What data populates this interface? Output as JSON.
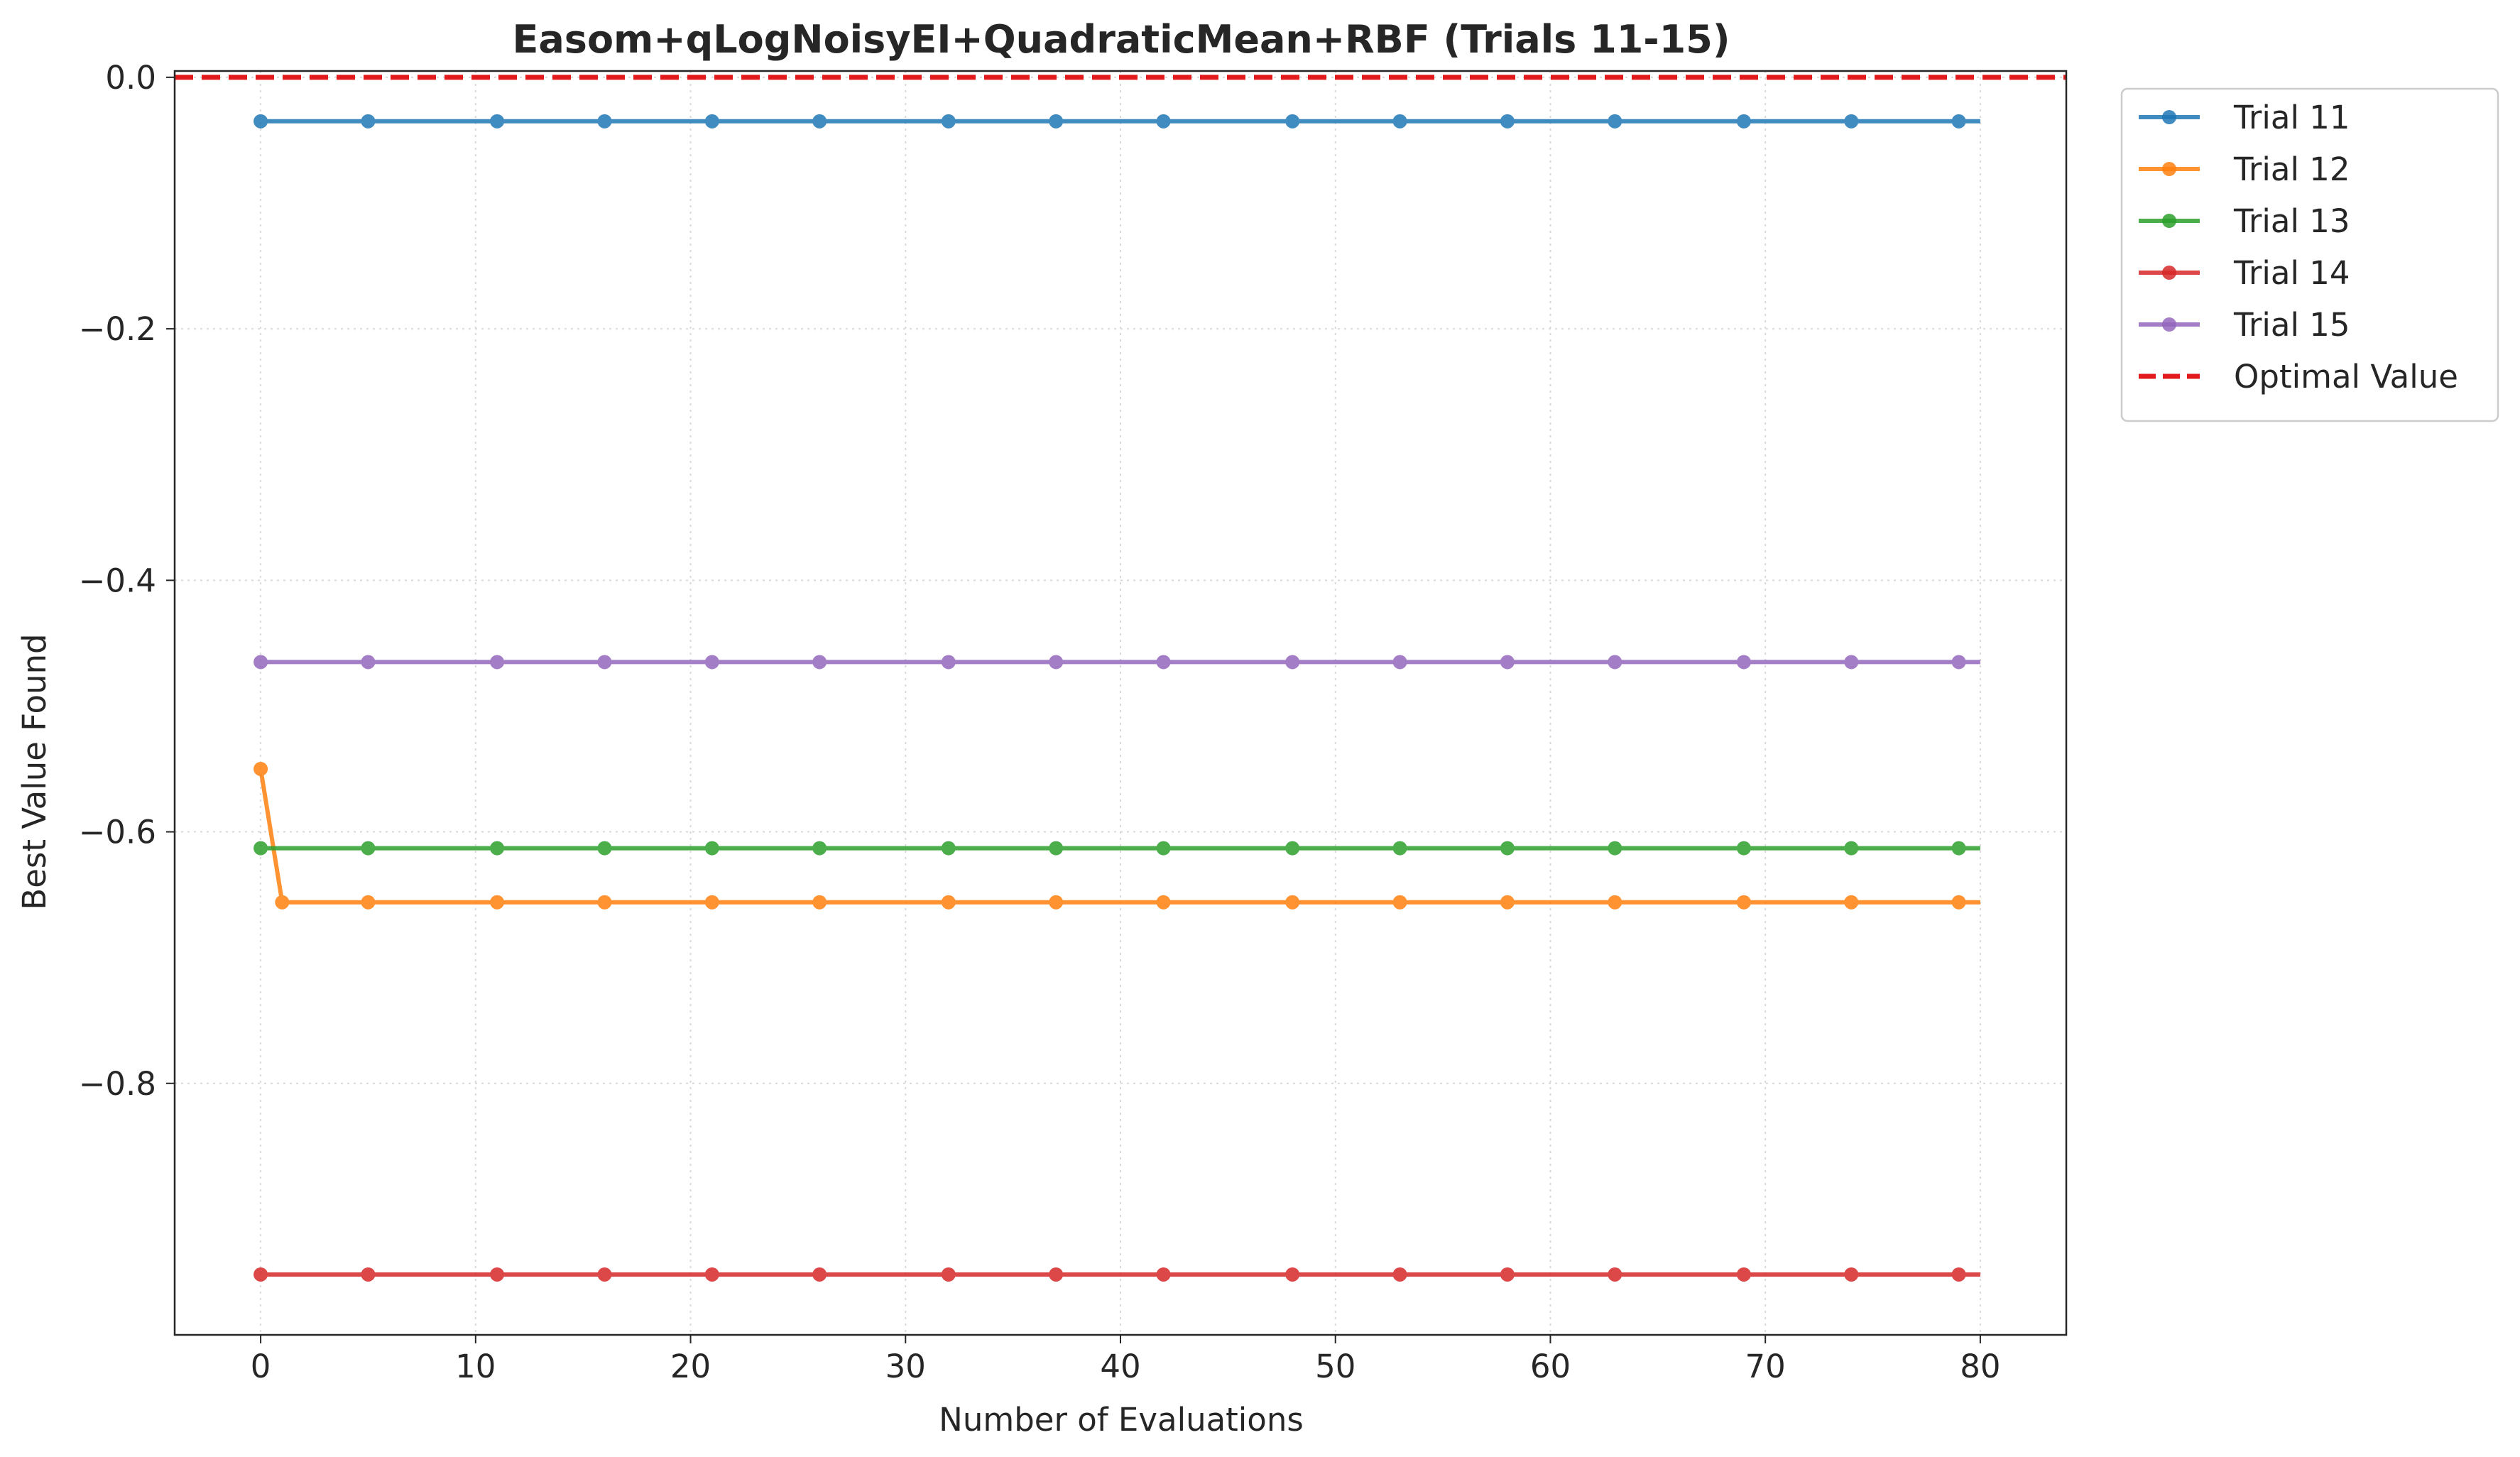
{
  "chart_data": {
    "type": "line",
    "title": "Easom+qLogNoisyEI+QuadraticMean+RBF (Trials 11-15)",
    "xlabel": "Number of Evaluations",
    "ylabel": "Best Value Found",
    "xlim": [
      -4,
      84
    ],
    "ylim": [
      -1.0,
      0.005
    ],
    "xticks": [
      0,
      10,
      20,
      30,
      40,
      50,
      60,
      70,
      80
    ],
    "xtick_labels": [
      "0",
      "10",
      "20",
      "30",
      "40",
      "50",
      "60",
      "70",
      "80"
    ],
    "yticks": [
      0.0,
      -0.2,
      -0.4,
      -0.6,
      -0.8
    ],
    "ytick_labels": [
      "0.0",
      "−0.2",
      "−0.4",
      "−0.6",
      "−0.8"
    ],
    "grid": true,
    "legend_position": "outside-upper-right",
    "series": [
      {
        "name": "Trial 11",
        "color": "#1f77b4",
        "x": [
          0,
          1,
          2,
          3,
          4,
          5,
          6,
          7,
          8,
          9,
          10,
          11,
          12,
          13,
          14,
          15,
          16,
          17,
          18,
          19,
          20,
          21,
          22,
          23,
          24,
          25,
          26,
          27,
          28,
          29,
          30,
          31,
          32,
          33,
          34,
          35,
          36,
          37,
          38,
          39,
          40,
          41,
          42,
          43,
          44,
          45,
          46,
          47,
          48,
          49,
          50,
          51,
          52,
          53,
          54,
          55,
          56,
          57,
          58,
          59,
          60,
          61,
          62,
          63,
          64,
          65,
          66,
          67,
          68,
          69,
          70,
          71,
          72,
          73,
          74,
          75,
          76,
          77,
          78,
          79,
          80
        ],
        "y": [
          -0.035,
          -0.035,
          -0.035,
          -0.035,
          -0.035,
          -0.035,
          -0.035,
          -0.035,
          -0.035,
          -0.035,
          -0.035,
          -0.035,
          -0.035,
          -0.035,
          -0.035,
          -0.035,
          -0.035,
          -0.035,
          -0.035,
          -0.035,
          -0.035,
          -0.035,
          -0.035,
          -0.035,
          -0.035,
          -0.035,
          -0.035,
          -0.035,
          -0.035,
          -0.035,
          -0.035,
          -0.035,
          -0.035,
          -0.035,
          -0.035,
          -0.035,
          -0.035,
          -0.035,
          -0.035,
          -0.035,
          -0.035,
          -0.035,
          -0.035,
          -0.035,
          -0.035,
          -0.035,
          -0.035,
          -0.035,
          -0.035,
          -0.035,
          -0.035,
          -0.035,
          -0.035,
          -0.035,
          -0.035,
          -0.035,
          -0.035,
          -0.035,
          -0.035,
          -0.035,
          -0.035,
          -0.035,
          -0.035,
          -0.035,
          -0.035,
          -0.035,
          -0.035,
          -0.035,
          -0.035,
          -0.035,
          -0.035,
          -0.035,
          -0.035,
          -0.035,
          -0.035,
          -0.035,
          -0.035,
          -0.035,
          -0.035,
          -0.035,
          -0.035
        ],
        "markers_x": [
          0,
          5,
          11,
          16,
          21,
          26,
          32,
          37,
          42,
          48,
          53,
          58,
          63,
          69,
          74,
          79
        ]
      },
      {
        "name": "Trial 12",
        "color": "#ff7f0e",
        "x": [
          0,
          1,
          2,
          3,
          4,
          5,
          6,
          7,
          8,
          9,
          10,
          11,
          12,
          13,
          14,
          15,
          16,
          17,
          18,
          19,
          20,
          21,
          22,
          23,
          24,
          25,
          26,
          27,
          28,
          29,
          30,
          31,
          32,
          33,
          34,
          35,
          36,
          37,
          38,
          39,
          40,
          41,
          42,
          43,
          44,
          45,
          46,
          47,
          48,
          49,
          50,
          51,
          52,
          53,
          54,
          55,
          56,
          57,
          58,
          59,
          60,
          61,
          62,
          63,
          64,
          65,
          66,
          67,
          68,
          69,
          70,
          71,
          72,
          73,
          74,
          75,
          76,
          77,
          78,
          79,
          80
        ],
        "y": [
          -0.55,
          -0.656,
          -0.656,
          -0.656,
          -0.656,
          -0.656,
          -0.656,
          -0.656,
          -0.656,
          -0.656,
          -0.656,
          -0.656,
          -0.656,
          -0.656,
          -0.656,
          -0.656,
          -0.656,
          -0.656,
          -0.656,
          -0.656,
          -0.656,
          -0.656,
          -0.656,
          -0.656,
          -0.656,
          -0.656,
          -0.656,
          -0.656,
          -0.656,
          -0.656,
          -0.656,
          -0.656,
          -0.656,
          -0.656,
          -0.656,
          -0.656,
          -0.656,
          -0.656,
          -0.656,
          -0.656,
          -0.656,
          -0.656,
          -0.656,
          -0.656,
          -0.656,
          -0.656,
          -0.656,
          -0.656,
          -0.656,
          -0.656,
          -0.656,
          -0.656,
          -0.656,
          -0.656,
          -0.656,
          -0.656,
          -0.656,
          -0.656,
          -0.656,
          -0.656,
          -0.656,
          -0.656,
          -0.656,
          -0.656,
          -0.656,
          -0.656,
          -0.656,
          -0.656,
          -0.656,
          -0.656,
          -0.656,
          -0.656,
          -0.656,
          -0.656,
          -0.656,
          -0.656,
          -0.656,
          -0.656,
          -0.656,
          -0.656,
          -0.656
        ],
        "markers_x": [
          0,
          1,
          5,
          11,
          16,
          21,
          26,
          32,
          37,
          42,
          48,
          53,
          58,
          63,
          69,
          74,
          79
        ]
      },
      {
        "name": "Trial 13",
        "color": "#2ca02c",
        "x": [
          0,
          1,
          2,
          3,
          4,
          5,
          6,
          7,
          8,
          9,
          10,
          11,
          12,
          13,
          14,
          15,
          16,
          17,
          18,
          19,
          20,
          21,
          22,
          23,
          24,
          25,
          26,
          27,
          28,
          29,
          30,
          31,
          32,
          33,
          34,
          35,
          36,
          37,
          38,
          39,
          40,
          41,
          42,
          43,
          44,
          45,
          46,
          47,
          48,
          49,
          50,
          51,
          52,
          53,
          54,
          55,
          56,
          57,
          58,
          59,
          60,
          61,
          62,
          63,
          64,
          65,
          66,
          67,
          68,
          69,
          70,
          71,
          72,
          73,
          74,
          75,
          76,
          77,
          78,
          79,
          80
        ],
        "y": [
          -0.613,
          -0.613,
          -0.613,
          -0.613,
          -0.613,
          -0.613,
          -0.613,
          -0.613,
          -0.613,
          -0.613,
          -0.613,
          -0.613,
          -0.613,
          -0.613,
          -0.613,
          -0.613,
          -0.613,
          -0.613,
          -0.613,
          -0.613,
          -0.613,
          -0.613,
          -0.613,
          -0.613,
          -0.613,
          -0.613,
          -0.613,
          -0.613,
          -0.613,
          -0.613,
          -0.613,
          -0.613,
          -0.613,
          -0.613,
          -0.613,
          -0.613,
          -0.613,
          -0.613,
          -0.613,
          -0.613,
          -0.613,
          -0.613,
          -0.613,
          -0.613,
          -0.613,
          -0.613,
          -0.613,
          -0.613,
          -0.613,
          -0.613,
          -0.613,
          -0.613,
          -0.613,
          -0.613,
          -0.613,
          -0.613,
          -0.613,
          -0.613,
          -0.613,
          -0.613,
          -0.613,
          -0.613,
          -0.613,
          -0.613,
          -0.613,
          -0.613,
          -0.613,
          -0.613,
          -0.613,
          -0.613,
          -0.613,
          -0.613,
          -0.613,
          -0.613,
          -0.613,
          -0.613,
          -0.613,
          -0.613,
          -0.613,
          -0.613,
          -0.613
        ],
        "markers_x": [
          0,
          5,
          11,
          16,
          21,
          26,
          32,
          37,
          42,
          48,
          53,
          58,
          63,
          69,
          74,
          79
        ]
      },
      {
        "name": "Trial 14",
        "color": "#d62728",
        "x": [
          0,
          1,
          2,
          3,
          4,
          5,
          6,
          7,
          8,
          9,
          10,
          11,
          12,
          13,
          14,
          15,
          16,
          17,
          18,
          19,
          20,
          21,
          22,
          23,
          24,
          25,
          26,
          27,
          28,
          29,
          30,
          31,
          32,
          33,
          34,
          35,
          36,
          37,
          38,
          39,
          40,
          41,
          42,
          43,
          44,
          45,
          46,
          47,
          48,
          49,
          50,
          51,
          52,
          53,
          54,
          55,
          56,
          57,
          58,
          59,
          60,
          61,
          62,
          63,
          64,
          65,
          66,
          67,
          68,
          69,
          70,
          71,
          72,
          73,
          74,
          75,
          76,
          77,
          78,
          79,
          80
        ],
        "y": [
          -0.952,
          -0.952,
          -0.952,
          -0.952,
          -0.952,
          -0.952,
          -0.952,
          -0.952,
          -0.952,
          -0.952,
          -0.952,
          -0.952,
          -0.952,
          -0.952,
          -0.952,
          -0.952,
          -0.952,
          -0.952,
          -0.952,
          -0.952,
          -0.952,
          -0.952,
          -0.952,
          -0.952,
          -0.952,
          -0.952,
          -0.952,
          -0.952,
          -0.952,
          -0.952,
          -0.952,
          -0.952,
          -0.952,
          -0.952,
          -0.952,
          -0.952,
          -0.952,
          -0.952,
          -0.952,
          -0.952,
          -0.952,
          -0.952,
          -0.952,
          -0.952,
          -0.952,
          -0.952,
          -0.952,
          -0.952,
          -0.952,
          -0.952,
          -0.952,
          -0.952,
          -0.952,
          -0.952,
          -0.952,
          -0.952,
          -0.952,
          -0.952,
          -0.952,
          -0.952,
          -0.952,
          -0.952,
          -0.952,
          -0.952,
          -0.952,
          -0.952,
          -0.952,
          -0.952,
          -0.952,
          -0.952,
          -0.952,
          -0.952,
          -0.952,
          -0.952,
          -0.952,
          -0.952,
          -0.952,
          -0.952,
          -0.952,
          -0.952,
          -0.952
        ],
        "markers_x": [
          0,
          5,
          11,
          16,
          21,
          26,
          32,
          37,
          42,
          48,
          53,
          58,
          63,
          69,
          74,
          79
        ]
      },
      {
        "name": "Trial 15",
        "color": "#9467bd",
        "x": [
          0,
          1,
          2,
          3,
          4,
          5,
          6,
          7,
          8,
          9,
          10,
          11,
          12,
          13,
          14,
          15,
          16,
          17,
          18,
          19,
          20,
          21,
          22,
          23,
          24,
          25,
          26,
          27,
          28,
          29,
          30,
          31,
          32,
          33,
          34,
          35,
          36,
          37,
          38,
          39,
          40,
          41,
          42,
          43,
          44,
          45,
          46,
          47,
          48,
          49,
          50,
          51,
          52,
          53,
          54,
          55,
          56,
          57,
          58,
          59,
          60,
          61,
          62,
          63,
          64,
          65,
          66,
          67,
          68,
          69,
          70,
          71,
          72,
          73,
          74,
          75,
          76,
          77,
          78,
          79,
          80
        ],
        "y": [
          -0.465,
          -0.465,
          -0.465,
          -0.465,
          -0.465,
          -0.465,
          -0.465,
          -0.465,
          -0.465,
          -0.465,
          -0.465,
          -0.465,
          -0.465,
          -0.465,
          -0.465,
          -0.465,
          -0.465,
          -0.465,
          -0.465,
          -0.465,
          -0.465,
          -0.465,
          -0.465,
          -0.465,
          -0.465,
          -0.465,
          -0.465,
          -0.465,
          -0.465,
          -0.465,
          -0.465,
          -0.465,
          -0.465,
          -0.465,
          -0.465,
          -0.465,
          -0.465,
          -0.465,
          -0.465,
          -0.465,
          -0.465,
          -0.465,
          -0.465,
          -0.465,
          -0.465,
          -0.465,
          -0.465,
          -0.465,
          -0.465,
          -0.465,
          -0.465,
          -0.465,
          -0.465,
          -0.465,
          -0.465,
          -0.465,
          -0.465,
          -0.465,
          -0.465,
          -0.465,
          -0.465,
          -0.465,
          -0.465,
          -0.465,
          -0.465,
          -0.465,
          -0.465,
          -0.465,
          -0.465,
          -0.465,
          -0.465,
          -0.465,
          -0.465,
          -0.465,
          -0.465,
          -0.465,
          -0.465,
          -0.465,
          -0.465,
          -0.465,
          -0.465
        ],
        "markers_x": [
          0,
          5,
          11,
          16,
          21,
          26,
          32,
          37,
          42,
          48,
          53,
          58,
          63,
          69,
          74,
          79
        ]
      }
    ],
    "reference_line": {
      "name": "Optimal Value",
      "y": 0.0,
      "color": "#e31a1c",
      "style": "dashed"
    }
  }
}
